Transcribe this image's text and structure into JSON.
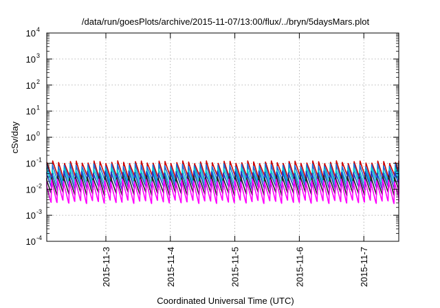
{
  "chart_data": {
    "type": "line",
    "title": "/data/run/goesPlots/archive/2015-11-07/13:00/flux/../bryn/5daysMars.plot",
    "xlabel": "Coordinated Universal Time (UTC)",
    "ylabel": "cSv/day",
    "yscale": "log",
    "ylim": [
      0.0001,
      10000
    ],
    "xlim": [
      "2015-11-02T02:00",
      "2015-11-07T13:00"
    ],
    "grid": true,
    "y_ticks": [
      {
        "base": "10",
        "exp": "-4"
      },
      {
        "base": "10",
        "exp": "-3"
      },
      {
        "base": "10",
        "exp": "-2"
      },
      {
        "base": "10",
        "exp": "-1"
      },
      {
        "base": "10",
        "exp": "0"
      },
      {
        "base": "10",
        "exp": "1"
      },
      {
        "base": "10",
        "exp": "2"
      },
      {
        "base": "10",
        "exp": "3"
      },
      {
        "base": "10",
        "exp": "4"
      }
    ],
    "x_ticks": [
      "2015-11-3",
      "2015-11-4",
      "2015-11-5",
      "2015-11-6",
      "2015-11-7"
    ],
    "sawtooth_period_hours": 2.2,
    "series": [
      {
        "color": "#cc0000",
        "peak": 0.11,
        "trough": 0.028
      },
      {
        "color": "#1f6fd6",
        "peak": 0.085,
        "trough": 0.02
      },
      {
        "color": "#00cccc",
        "peak": 0.06,
        "trough": 0.015
      },
      {
        "color": "#1f3cc8",
        "peak": 0.045,
        "trough": 0.011
      },
      {
        "color": "#222222",
        "peak": 0.03,
        "trough": 0.007
      },
      {
        "color": "#ff00ff",
        "peak": 0.022,
        "trough": 0.0035
      }
    ]
  }
}
